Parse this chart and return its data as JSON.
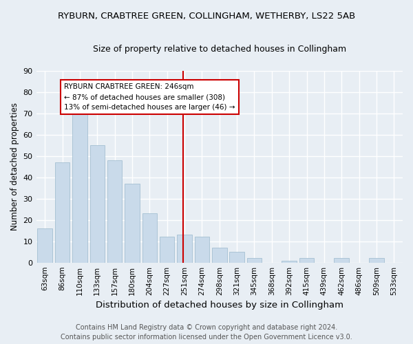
{
  "title1": "RYBURN, CRABTREE GREEN, COLLINGHAM, WETHERBY, LS22 5AB",
  "title2": "Size of property relative to detached houses in Collingham",
  "xlabel": "Distribution of detached houses by size in Collingham",
  "ylabel": "Number of detached properties",
  "categories": [
    "63sqm",
    "86sqm",
    "110sqm",
    "133sqm",
    "157sqm",
    "180sqm",
    "204sqm",
    "227sqm",
    "251sqm",
    "274sqm",
    "298sqm",
    "321sqm",
    "345sqm",
    "368sqm",
    "392sqm",
    "415sqm",
    "439sqm",
    "462sqm",
    "486sqm",
    "509sqm",
    "533sqm"
  ],
  "values": [
    16,
    47,
    70,
    55,
    48,
    37,
    23,
    12,
    13,
    12,
    7,
    5,
    2,
    0,
    1,
    2,
    0,
    2,
    0,
    2,
    0
  ],
  "bar_color": "#c9daea",
  "bar_edge_color": "#9ab8cc",
  "vline_x_index": 8,
  "vline_color": "#cc0000",
  "annotation_title": "RYBURN CRABTREE GREEN: 246sqm",
  "annotation_line2": "← 87% of detached houses are smaller (308)",
  "annotation_line3": "13% of semi-detached houses are larger (46) →",
  "annotation_box_color": "#ffffff",
  "annotation_box_edge": "#cc0000",
  "ylim": [
    0,
    90
  ],
  "yticks": [
    0,
    10,
    20,
    30,
    40,
    50,
    60,
    70,
    80,
    90
  ],
  "footer1": "Contains HM Land Registry data © Crown copyright and database right 2024.",
  "footer2": "Contains public sector information licensed under the Open Government Licence v3.0.",
  "bg_color": "#e8eef4",
  "plot_bg_color": "#e8eef4",
  "grid_color": "#ffffff",
  "title1_fontsize": 9.5,
  "title2_fontsize": 9,
  "xlabel_fontsize": 9.5,
  "ylabel_fontsize": 8.5,
  "tick_fontsize": 7.5,
  "footer_fontsize": 7,
  "annotation_fontsize": 7.5
}
